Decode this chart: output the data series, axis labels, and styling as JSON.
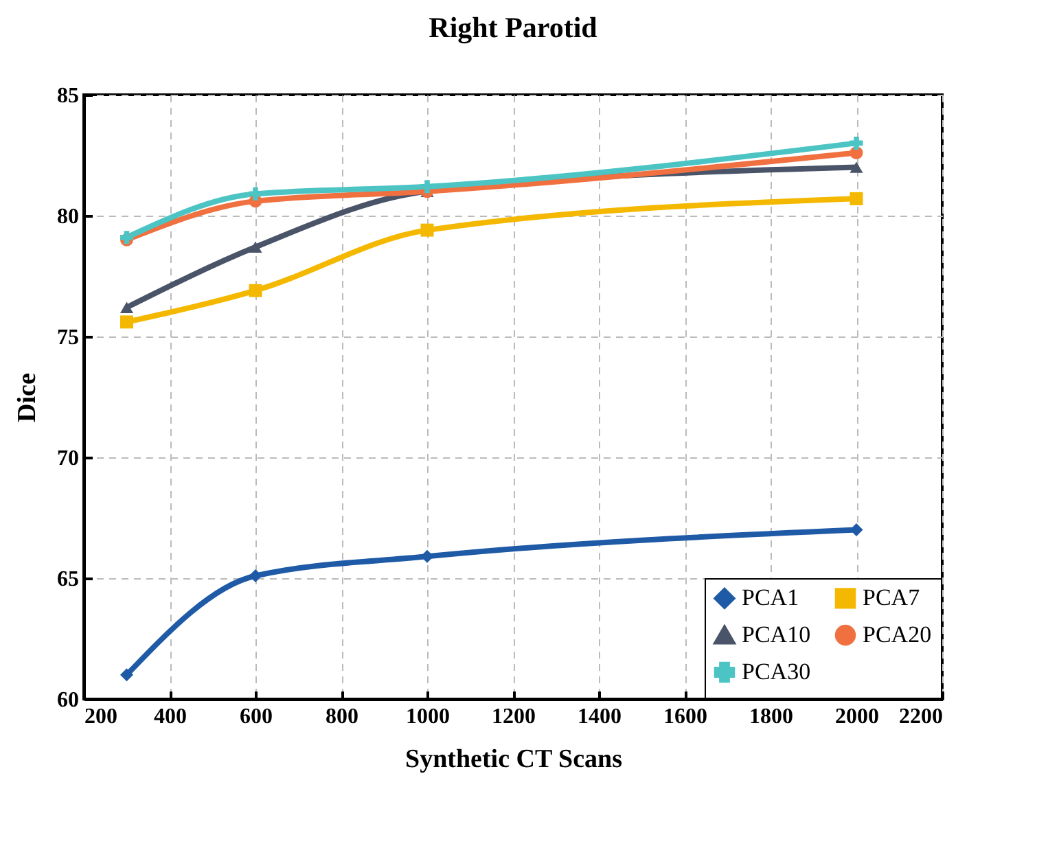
{
  "chart_data": {
    "type": "line",
    "title": "Right Parotid",
    "xlabel": "Synthetic CT Scans",
    "ylabel": "Dice",
    "x": [
      300,
      600,
      1000,
      2000
    ],
    "series": [
      {
        "name": "PCA1",
        "color": "#1f5aa6",
        "marker": "diamond",
        "values": [
          61.0,
          65.1,
          65.9,
          67.0
        ]
      },
      {
        "name": "PCA7",
        "color": "#f5b800",
        "marker": "square",
        "values": [
          75.6,
          76.9,
          79.4,
          80.7
        ]
      },
      {
        "name": "PCA10",
        "color": "#4a5468",
        "marker": "triangle",
        "values": [
          76.2,
          78.7,
          81.0,
          82.0
        ]
      },
      {
        "name": "PCA20",
        "color": "#f07040",
        "marker": "circle",
        "values": [
          79.0,
          80.6,
          81.0,
          82.6
        ]
      },
      {
        "name": "PCA30",
        "color": "#4cc4c4",
        "marker": "cross",
        "values": [
          79.1,
          80.9,
          81.2,
          83.0
        ]
      }
    ],
    "xlim": [
      200,
      2200
    ],
    "xticks": [
      200,
      400,
      600,
      800,
      1000,
      1200,
      1400,
      1600,
      1800,
      2000,
      2200
    ],
    "ylim": [
      60,
      85
    ],
    "yticks": [
      60,
      65,
      70,
      75,
      80,
      85
    ],
    "grid": true,
    "legend": "bottom right",
    "line_style": "solid"
  }
}
